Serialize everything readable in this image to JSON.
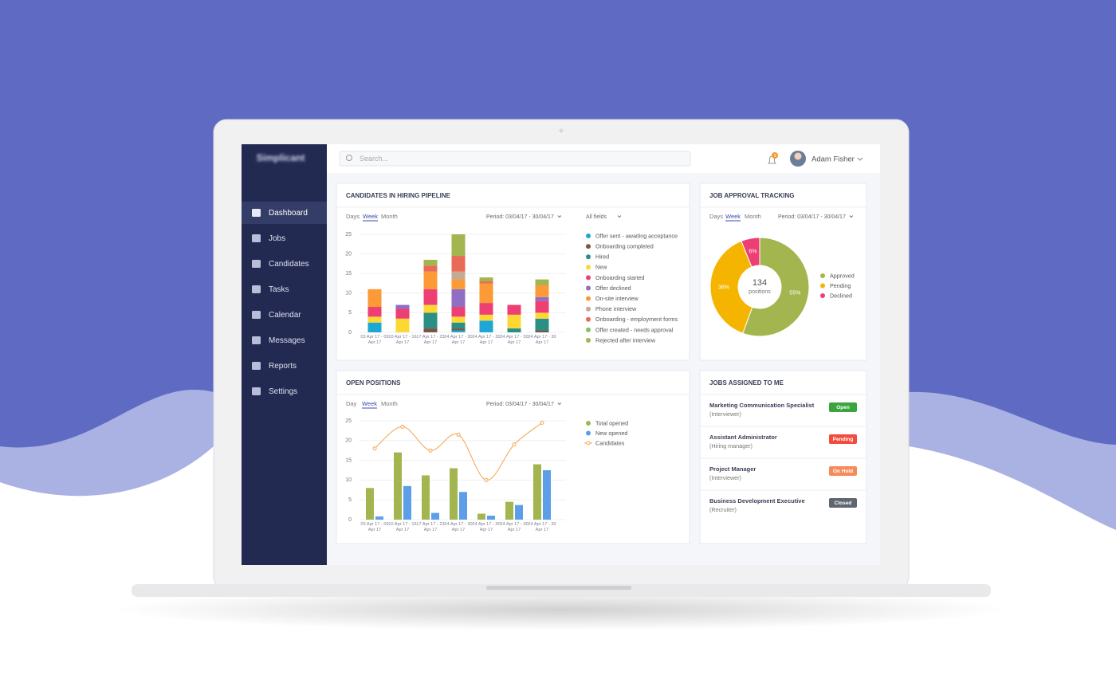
{
  "brand": "Simplicant",
  "search_placeholder": "Search...",
  "notifications": 3,
  "user": "Adam Fisher",
  "nav": [
    "Dashboard",
    "Jobs",
    "Candidates",
    "Tasks",
    "Calendar",
    "Messages",
    "Reports",
    "Settings"
  ],
  "chart_data": [
    {
      "type": "stacked_bar",
      "title": "CANDIDATES IN HIRING PIPELINE",
      "periods": [
        "Days",
        "Week",
        "Month"
      ],
      "selected_period": 1,
      "period": "Period: 03/04/17 - 30/04/17",
      "filter": "All fields",
      "categories": [
        "03 Apr 17 - 09 Apr 17",
        "10 Apr 17 - 16 Apr 17",
        "17 Apr 17 - 23 Apr 17",
        "24 Apr 17 - 30 Apr 17",
        "24 Apr 17 - 30 Apr 17",
        "24 Apr 17 - 30 Apr 17",
        "24 Apr 17 - 30 Apr 17"
      ],
      "series": [
        {
          "name": "Offer sent - awaiting acceptance",
          "color": "#1ea7d4",
          "values": [
            2.5,
            0,
            0,
            0.5,
            3,
            0,
            0
          ]
        },
        {
          "name": "Onboarding completed",
          "color": "#7b5548",
          "values": [
            0,
            0,
            1,
            0.5,
            0,
            0,
            0.5
          ]
        },
        {
          "name": "Hired",
          "color": "#2a8f84",
          "values": [
            0,
            0,
            4,
            1.5,
            0,
            1,
            3
          ]
        },
        {
          "name": "New",
          "color": "#fdd835",
          "values": [
            1.5,
            3.5,
            2,
            1.5,
            1.5,
            3.5,
            1.5
          ]
        },
        {
          "name": "Onboarding started",
          "color": "#ee3f74",
          "values": [
            2.5,
            2.5,
            4,
            2.5,
            3,
            2.5,
            3
          ]
        },
        {
          "name": "Offer declined",
          "color": "#8e6fc4",
          "values": [
            0,
            1,
            0,
            4.5,
            0,
            0,
            1
          ]
        },
        {
          "name": "On-site interview",
          "color": "#fb9a36",
          "values": [
            4.5,
            0,
            4.5,
            2.5,
            5,
            0,
            3
          ]
        },
        {
          "name": "Phone interview",
          "color": "#c3ab95",
          "values": [
            0,
            0,
            0,
            2,
            0,
            0,
            0
          ]
        },
        {
          "name": "Onboarding - employment forms",
          "color": "#e86a57",
          "values": [
            0,
            0,
            1.5,
            4,
            0.5,
            0,
            0
          ]
        },
        {
          "name": "Offer created - needs approval",
          "color": "#7cc36a",
          "values": [
            0,
            0,
            0,
            0,
            0,
            0,
            0
          ]
        },
        {
          "name": "Rejected after interview",
          "color": "#a3b54f",
          "values": [
            0,
            0,
            1.5,
            5.5,
            1,
            0,
            1.5
          ]
        }
      ],
      "ylim": [
        0,
        25
      ],
      "yticks": [
        0,
        5,
        10,
        15,
        20,
        25
      ],
      "grid": true
    },
    {
      "type": "donut",
      "title": "JOB APPROVAL TRACKING",
      "periods": [
        "Days",
        "Week",
        "Month"
      ],
      "selected_period": 1,
      "period": "Period: 03/04/17 - 30/04/17",
      "categories": [
        "Approved",
        "Pending",
        "Declined"
      ],
      "values": [
        55,
        38,
        6
      ],
      "value_labels": [
        "55%",
        "38%",
        "6%"
      ],
      "colors": [
        "#a3b54f",
        "#f4b400",
        "#ee3f74"
      ],
      "center_value": 134,
      "center_label": "positions"
    },
    {
      "type": "bar_line",
      "title": "OPEN POSITIONS",
      "periods": [
        "Day",
        "Week",
        "Month"
      ],
      "selected_period": 1,
      "period": "Period: 03/04/17 - 30/04/17",
      "categories": [
        "03 Apr 17 - 09 Apr 17",
        "10 Apr 17 - 16 Apr 17",
        "17 Apr 17 - 23 Apr 17",
        "24 Apr 17 - 30 Apr 17",
        "24 Apr 17 - 30 Apr 17",
        "24 Apr 17 - 30 Apr 17",
        "24 Apr 17 - 30 Apr 17"
      ],
      "series": [
        {
          "name": "Total opened",
          "color": "#a3b54f",
          "values": [
            8,
            17,
            11.2,
            13,
            1.5,
            4.5,
            14
          ]
        },
        {
          "name": "New opened",
          "color": "#5c9fe8",
          "values": [
            0.8,
            8.5,
            1.7,
            7,
            1,
            3.7,
            12.5
          ]
        },
        {
          "name": "Candidates",
          "color": "#f7a24c",
          "values": [
            18,
            23.5,
            17.5,
            21.5,
            10,
            19,
            24.5
          ],
          "kind": "line"
        }
      ],
      "ylim": [
        0,
        25
      ],
      "yticks": [
        0,
        5,
        10,
        15,
        20,
        25
      ],
      "grid": true
    }
  ],
  "jobs": {
    "title": "JOBS ASSIGNED TO ME",
    "rows": [
      {
        "title": "Marketing Communication Specialist",
        "role": "(Interviewer)",
        "status": "Open",
        "status_color": "#3aa53f"
      },
      {
        "title": "Assistant Administrator",
        "role": "(Hiring manager)",
        "status": "Pending",
        "status_color": "#f44b3e"
      },
      {
        "title": "Project Manager",
        "role": "(Interviewer)",
        "status": "On Hold",
        "status_color": "#f58a5b"
      },
      {
        "title": "Business Development Executive",
        "role": "(Recruiter)",
        "status": "Closed",
        "status_color": "#5f6670"
      }
    ]
  }
}
